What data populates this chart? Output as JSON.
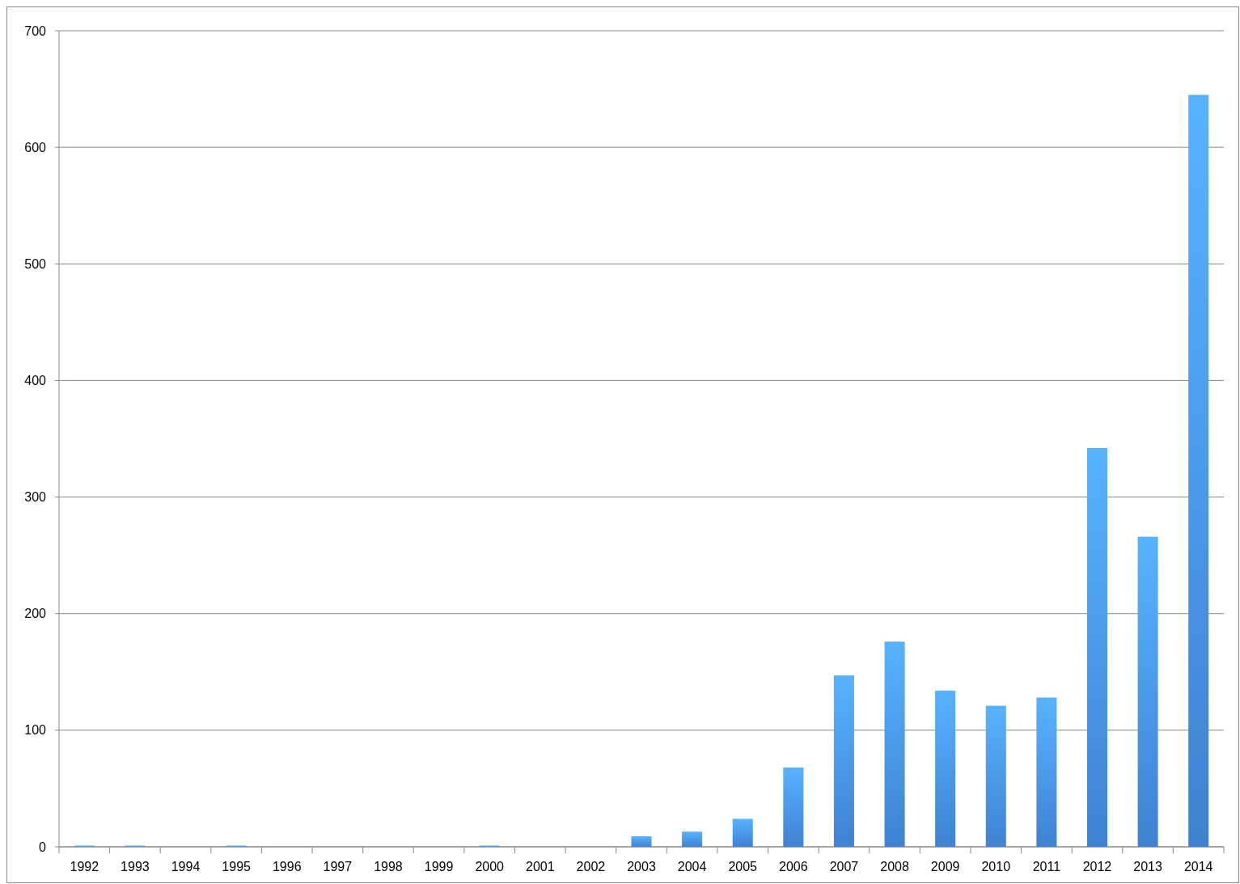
{
  "chart_data": {
    "type": "bar",
    "categories": [
      "1992",
      "1993",
      "1994",
      "1995",
      "1996",
      "1997",
      "1998",
      "1999",
      "2000",
      "2001",
      "2002",
      "2003",
      "2004",
      "2005",
      "2006",
      "2007",
      "2008",
      "2009",
      "2010",
      "2011",
      "2012",
      "2013",
      "2014"
    ],
    "values": [
      1,
      1,
      0,
      1,
      0,
      0,
      0,
      0,
      1,
      0,
      0,
      9,
      13,
      24,
      68,
      147,
      176,
      134,
      121,
      128,
      342,
      266,
      645
    ],
    "color": "#3f82d2",
    "ylim": [
      0,
      700
    ],
    "yticks": [
      0,
      100,
      200,
      300,
      400,
      500,
      600,
      700
    ],
    "grid": "y"
  }
}
